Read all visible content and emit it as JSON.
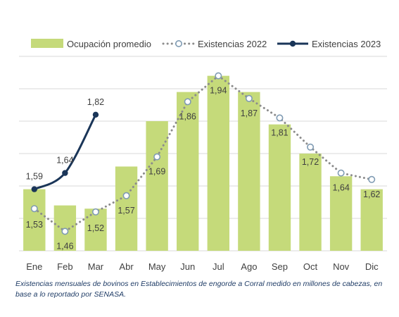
{
  "chart_data": {
    "type": "bar",
    "categories": [
      "Ene",
      "Feb",
      "Mar",
      "Abr",
      "May",
      "Jun",
      "Jul",
      "Ago",
      "Sep",
      "Oct",
      "Nov",
      "Dic"
    ],
    "series": [
      {
        "name": "Ocupación promedio",
        "type": "bar",
        "color": "#c5da7a",
        "values": [
          1.59,
          1.54,
          1.53,
          1.66,
          1.8,
          1.89,
          1.94,
          1.89,
          1.79,
          1.7,
          1.63,
          1.59
        ]
      },
      {
        "name": "Existencias 2022",
        "type": "line",
        "style": "dotted-markers-hollow",
        "color": "#8c8c8c",
        "values": [
          1.53,
          1.46,
          1.52,
          1.57,
          1.69,
          1.86,
          1.94,
          1.87,
          1.81,
          1.72,
          1.64,
          1.62
        ],
        "labels": [
          "1,53",
          "1,46",
          "1,52",
          "1,57",
          "1,69",
          "1,86",
          "1,94",
          "1,87",
          "1,81",
          "1,72",
          "1,64",
          "1,62"
        ]
      },
      {
        "name": "Existencias 2023",
        "type": "line",
        "style": "solid-markers-filled",
        "color": "#1a3558",
        "values": [
          1.59,
          1.64,
          1.82,
          null,
          null,
          null,
          null,
          null,
          null,
          null,
          null,
          null
        ],
        "labels": [
          "1,59",
          "1,64",
          "1,82"
        ]
      }
    ],
    "title": "",
    "xlabel": "",
    "ylabel": "",
    "ylim": [
      1.4,
      2.0
    ],
    "grid": true,
    "legend": "top"
  },
  "caption": "Existencias mensuales de bovinos en Establecimientos de engorde a Corral medido en millones de cabezas, en base a lo reportado por SENASA."
}
